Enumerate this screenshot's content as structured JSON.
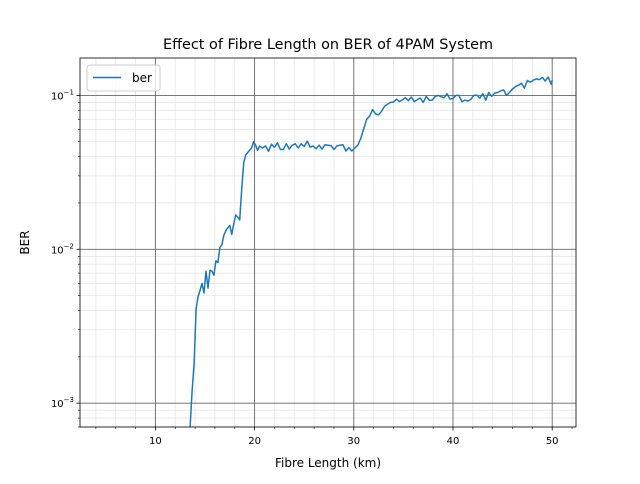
{
  "chart_data": {
    "type": "line",
    "title": "Effect of Fibre Length on BER of 4PAM System",
    "xlabel": "Fibre Length (km)",
    "ylabel": "BER",
    "xlim": [
      2.4,
      52.4
    ],
    "ylim": [
      0.0007,
      0.175
    ],
    "yscale": "log",
    "grid": "major and minor",
    "legend": "upper-left",
    "x_ticks": [
      {
        "value": 10,
        "label": "10"
      },
      {
        "value": 20,
        "label": "20"
      },
      {
        "value": 30,
        "label": "30"
      },
      {
        "value": 40,
        "label": "40"
      },
      {
        "value": 50,
        "label": "50"
      }
    ],
    "y_ticks": [
      {
        "value": 0.001,
        "base": "10",
        "exp": "−3"
      },
      {
        "value": 0.01,
        "base": "10",
        "exp": "−2"
      },
      {
        "value": 0.1,
        "base": "10",
        "exp": "−1"
      }
    ],
    "series": [
      {
        "name": "ber",
        "color": "#1f77b4",
        "x": [
          13.5,
          13.7,
          13.9,
          14.1,
          14.3,
          14.5,
          14.7,
          14.9,
          15.1,
          15.3,
          15.5,
          15.7,
          15.9,
          16.1,
          16.3,
          16.5,
          16.7,
          16.9,
          17.1,
          17.3,
          17.5,
          17.7,
          17.9,
          18.1,
          18.3,
          18.5,
          18.7,
          18.9,
          19.1,
          19.3,
          19.5,
          19.7,
          19.9,
          20.1,
          20.3,
          20.5,
          20.8,
          21.1,
          21.4,
          21.7,
          22.0,
          22.3,
          22.6,
          22.9,
          23.2,
          23.5,
          23.8,
          24.1,
          24.4,
          24.7,
          25.0,
          25.3,
          25.6,
          25.9,
          26.2,
          26.5,
          26.8,
          27.1,
          27.4,
          27.7,
          28.0,
          28.3,
          28.6,
          28.9,
          29.2,
          29.5,
          29.8,
          30.1,
          30.4,
          30.7,
          31.0,
          31.3,
          31.6,
          31.9,
          32.2,
          32.5,
          32.8,
          33.1,
          33.4,
          33.7,
          34.0,
          34.3,
          34.6,
          34.9,
          35.2,
          35.5,
          35.8,
          36.1,
          36.4,
          36.7,
          37.0,
          37.3,
          37.6,
          37.9,
          38.2,
          38.5,
          38.8,
          39.1,
          39.4,
          39.7,
          40.0,
          40.3,
          40.6,
          40.9,
          41.2,
          41.5,
          41.8,
          42.1,
          42.4,
          42.7,
          43.0,
          43.3,
          43.6,
          43.9,
          44.2,
          44.5,
          44.8,
          45.1,
          45.4,
          45.7,
          46.0,
          46.3,
          46.6,
          46.9,
          47.2,
          47.5,
          47.8,
          48.1,
          48.4,
          48.7,
          49.0,
          49.3,
          49.6,
          49.9,
          50.0
        ],
        "y": [
          0.0007,
          0.0012,
          0.0018,
          0.0041,
          0.0049,
          0.0054,
          0.006,
          0.0052,
          0.0072,
          0.0056,
          0.0073,
          0.0072,
          0.0068,
          0.0084,
          0.0082,
          0.0103,
          0.0107,
          0.0123,
          0.0132,
          0.0138,
          0.0143,
          0.0125,
          0.0147,
          0.0167,
          0.0162,
          0.0155,
          0.0245,
          0.0365,
          0.041,
          0.0425,
          0.044,
          0.0455,
          0.05,
          0.0475,
          0.044,
          0.0468,
          0.0455,
          0.047,
          0.0433,
          0.0482,
          0.046,
          0.0492,
          0.0445,
          0.0447,
          0.0485,
          0.0448,
          0.0475,
          0.0485,
          0.0455,
          0.0485,
          0.0465,
          0.0505,
          0.0462,
          0.0468,
          0.045,
          0.0475,
          0.0448,
          0.0478,
          0.0475,
          0.0472,
          0.0445,
          0.047,
          0.0475,
          0.0478,
          0.0435,
          0.0458,
          0.0435,
          0.0455,
          0.0475,
          0.0525,
          0.0605,
          0.07,
          0.0735,
          0.0808,
          0.0757,
          0.0748,
          0.079,
          0.085,
          0.0875,
          0.09,
          0.0905,
          0.0945,
          0.0912,
          0.0935,
          0.0965,
          0.0925,
          0.0975,
          0.0912,
          0.0938,
          0.0962,
          0.09,
          0.0985,
          0.093,
          0.0932,
          0.0982,
          0.1,
          0.098,
          0.0965,
          0.1025,
          0.0945,
          0.0958,
          0.1,
          0.1,
          0.091,
          0.093,
          0.092,
          0.0942,
          0.1,
          0.1005,
          0.096,
          0.1025,
          0.093,
          0.1045,
          0.0985,
          0.1035,
          0.1045,
          0.107,
          0.1085,
          0.1,
          0.1045,
          0.11,
          0.114,
          0.1165,
          0.12,
          0.1115,
          0.125,
          0.122,
          0.1255,
          0.128,
          0.1265,
          0.131,
          0.124,
          0.1315,
          0.118,
          0.1255
        ]
      }
    ]
  }
}
